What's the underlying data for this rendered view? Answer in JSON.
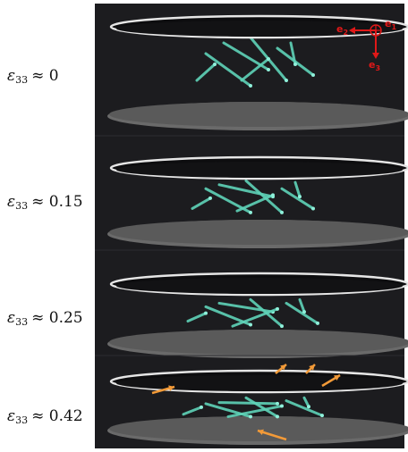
{
  "panels": [
    {
      "symbol": "ε",
      "index": "33",
      "value": "≈ 0"
    },
    {
      "symbol": "ε",
      "index": "33",
      "value": "≈ 0.15"
    },
    {
      "symbol": "ε",
      "index": "33",
      "value": "≈ 0.25"
    },
    {
      "symbol": "ε",
      "index": "33",
      "value": "≈ 0.42"
    }
  ],
  "axes": [
    {
      "letter": "e",
      "index": "1"
    },
    {
      "letter": "e",
      "index": "2"
    },
    {
      "letter": "e",
      "index": "3"
    }
  ]
}
